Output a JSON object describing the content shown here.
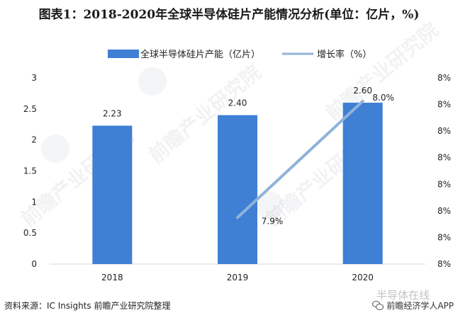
{
  "title": "图表1：2018-2020年全球半导体硅片产能情况分析(单位：亿片，%)",
  "source": "资料来源：IC Insights 前瞻产业研究院整理",
  "brand": "前瞻经济学人APP",
  "brand_faint": "半导体在线",
  "watermark_text": "前瞻产业研究院",
  "colors": {
    "bar": "#3f7fd4",
    "line": "#8fb3d9",
    "text": "#222222",
    "axis": "#d9d9d9"
  },
  "chart_data": {
    "type": "bar",
    "title": "图表1：2018-2020年全球半导体硅片产能情况分析(单位：亿片，%)",
    "categories": [
      "2018",
      "2019",
      "2020"
    ],
    "series": [
      {
        "name": "全球半导体硅片产能（亿片）",
        "type": "bar",
        "axis": "left",
        "values": [
          2.23,
          2.4,
          2.6
        ],
        "labels": [
          "2.23",
          "2.40",
          "2.60"
        ]
      },
      {
        "name": "增长率（%）",
        "type": "line",
        "axis": "right",
        "values": [
          null,
          7.9,
          8.0
        ],
        "labels": [
          "",
          "7.9%",
          "8.0%"
        ]
      }
    ],
    "y_left": {
      "ticks": [
        "0",
        "0.5",
        "1",
        "1.5",
        "2",
        "2.5",
        "3"
      ],
      "min": 0,
      "max": 3
    },
    "y_right": {
      "ticks": [
        "8%",
        "8%",
        "8%",
        "8%",
        "8%",
        "8%",
        "8%",
        "8%"
      ],
      "min": 7.86,
      "max": 8.02
    },
    "legend_position": "top-center",
    "grid": false
  }
}
